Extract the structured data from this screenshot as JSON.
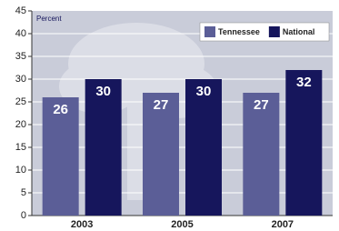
{
  "chart_data": {
    "type": "bar",
    "y_label": "Percent",
    "categories": [
      "2003",
      "2005",
      "2007"
    ],
    "series": [
      {
        "name": "Tennessee",
        "color": "#5b5e97",
        "values": [
          26,
          27,
          27
        ]
      },
      {
        "name": "National",
        "color": "#16165c",
        "values": [
          30,
          30,
          32
        ]
      }
    ],
    "ylim": [
      0,
      45
    ],
    "yticks": [
      0,
      5,
      10,
      15,
      20,
      25,
      30,
      35,
      40,
      45
    ],
    "grid": true,
    "legend": "top-right"
  }
}
